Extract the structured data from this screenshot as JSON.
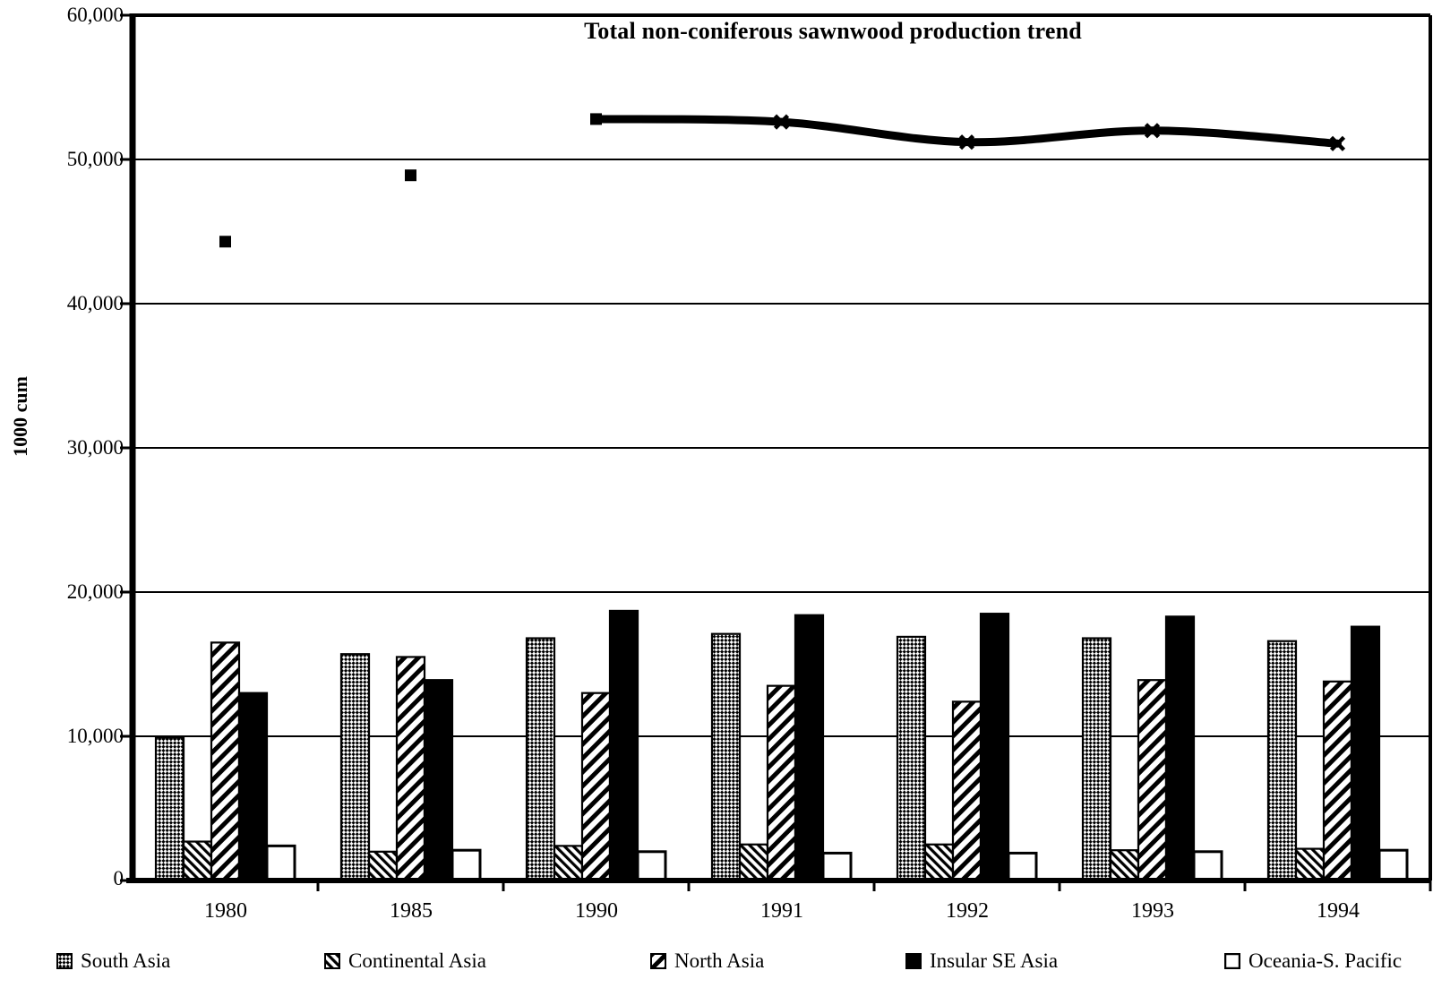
{
  "title": "Total non-coniferous sawnwood production trend",
  "y_axis": {
    "label": "1000 cum",
    "ticks": [
      "60,000",
      "50,000",
      "40,000",
      "30,000",
      "20,000",
      "10,000",
      "0"
    ]
  },
  "colors": {
    "ink": "#000000",
    "paper": "#ffffff"
  },
  "chart_data": {
    "type": "bar",
    "subtype": "grouped bars with overlaid trend line",
    "title": "Total non-coniferous sawnwood production trend",
    "xlabel": "",
    "ylabel": "1000 cum",
    "ylim": [
      0,
      60000
    ],
    "ytick_step": 10000,
    "grid": "horizontal",
    "legend_position": "bottom",
    "categories": [
      "1980",
      "1985",
      "1990",
      "1991",
      "1992",
      "1993",
      "1994"
    ],
    "series": [
      {
        "name": "South Asia",
        "type": "bar",
        "pattern": "dense-checker",
        "values": [
          9900,
          15700,
          16800,
          17100,
          16900,
          16800,
          16600
        ]
      },
      {
        "name": "Continental Asia",
        "type": "bar",
        "pattern": "diagonal-backslash",
        "values": [
          2700,
          2000,
          2400,
          2500,
          2500,
          2100,
          2200
        ]
      },
      {
        "name": "North Asia",
        "type": "bar",
        "pattern": "diagonal-slash",
        "values": [
          16500,
          15500,
          13000,
          13500,
          12400,
          13900,
          13800
        ]
      },
      {
        "name": "Insular SE Asia",
        "type": "bar",
        "pattern": "solid-black",
        "values": [
          13000,
          13900,
          18700,
          18400,
          18500,
          18300,
          17600
        ]
      },
      {
        "name": "Oceania-S. Pacific",
        "type": "bar",
        "pattern": "white-outline",
        "values": [
          2400,
          2100,
          2000,
          1900,
          1900,
          2000,
          2100
        ]
      }
    ],
    "line_series": {
      "name": "Total non-coniferous sawnwood production trend",
      "values": [
        44300,
        48900,
        52800,
        52600,
        51200,
        52000,
        51100
      ],
      "isolated_marker_indices": [
        0,
        1
      ],
      "connected_from_index": 2,
      "marker": "square / x-star",
      "color": "#000000"
    }
  }
}
